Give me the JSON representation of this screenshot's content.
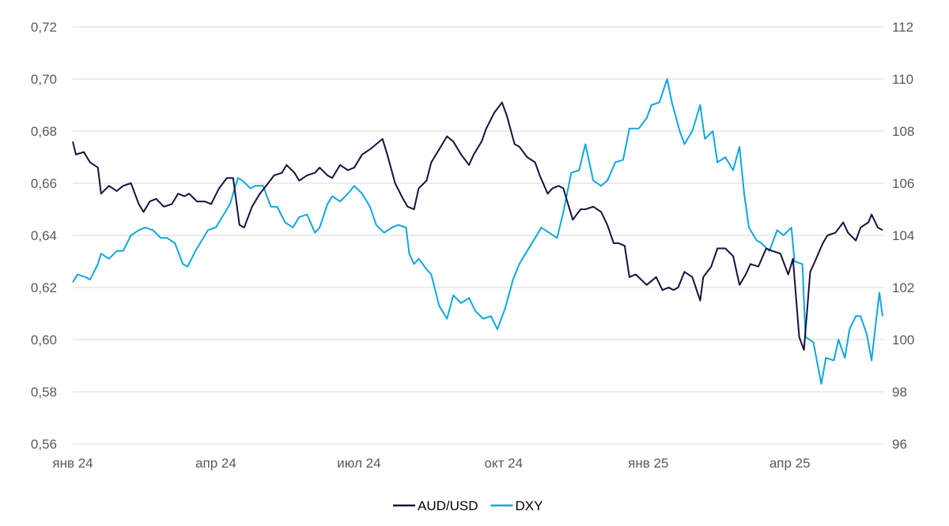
{
  "chart_data": {
    "type": "line",
    "title": "",
    "xlabel": "",
    "ylabel": "",
    "y_left_lim": [
      0.56,
      0.72
    ],
    "y_right_lim": [
      96,
      112
    ],
    "y_left_ticks": [
      "0,56",
      "0,58",
      "0,60",
      "0,62",
      "0,64",
      "0,66",
      "0,68",
      "0,70",
      "0,72"
    ],
    "y_right_ticks": [
      "96",
      "98",
      "100",
      "102",
      "104",
      "106",
      "108",
      "110",
      "112"
    ],
    "x_range": [
      "2024-01-01",
      "2025-05-31"
    ],
    "x_ticks": [
      {
        "date": "2024-01-01",
        "label": "янв 24"
      },
      {
        "date": "2024-04-01",
        "label": "апр 24"
      },
      {
        "date": "2024-07-01",
        "label": "июл 24"
      },
      {
        "date": "2024-10-01",
        "label": "окт 24"
      },
      {
        "date": "2025-01-01",
        "label": "янв 25"
      },
      {
        "date": "2025-04-01",
        "label": "апр 25"
      }
    ],
    "grid": true,
    "legend_position": "bottom-center",
    "series": [
      {
        "name": "AUD/USD",
        "axis": "left",
        "color": "#14123f",
        "points": [
          [
            "2024-01-01",
            0.676
          ],
          [
            "2024-01-03",
            0.671
          ],
          [
            "2024-01-08",
            0.672
          ],
          [
            "2024-01-12",
            0.668
          ],
          [
            "2024-01-17",
            0.666
          ],
          [
            "2024-01-19",
            0.656
          ],
          [
            "2024-01-24",
            0.659
          ],
          [
            "2024-01-29",
            0.657
          ],
          [
            "2024-02-02",
            0.659
          ],
          [
            "2024-02-07",
            0.66
          ],
          [
            "2024-02-12",
            0.652
          ],
          [
            "2024-02-15",
            0.649
          ],
          [
            "2024-02-19",
            0.653
          ],
          [
            "2024-02-23",
            0.654
          ],
          [
            "2024-02-28",
            0.651
          ],
          [
            "2024-03-04",
            0.652
          ],
          [
            "2024-03-08",
            0.656
          ],
          [
            "2024-03-12",
            0.655
          ],
          [
            "2024-03-15",
            0.656
          ],
          [
            "2024-03-20",
            0.653
          ],
          [
            "2024-03-25",
            0.653
          ],
          [
            "2024-03-29",
            0.652
          ],
          [
            "2024-04-03",
            0.658
          ],
          [
            "2024-04-08",
            0.662
          ],
          [
            "2024-04-12",
            0.662
          ],
          [
            "2024-04-16",
            0.644
          ],
          [
            "2024-04-19",
            0.643
          ],
          [
            "2024-04-24",
            0.651
          ],
          [
            "2024-04-29",
            0.656
          ],
          [
            "2024-05-03",
            0.659
          ],
          [
            "2024-05-08",
            0.663
          ],
          [
            "2024-05-13",
            0.664
          ],
          [
            "2024-05-16",
            0.667
          ],
          [
            "2024-05-21",
            0.664
          ],
          [
            "2024-05-24",
            0.661
          ],
          [
            "2024-05-29",
            0.663
          ],
          [
            "2024-06-03",
            0.664
          ],
          [
            "2024-06-06",
            0.666
          ],
          [
            "2024-06-11",
            0.663
          ],
          [
            "2024-06-14",
            0.662
          ],
          [
            "2024-06-19",
            0.667
          ],
          [
            "2024-06-24",
            0.665
          ],
          [
            "2024-06-28",
            0.666
          ],
          [
            "2024-07-03",
            0.671
          ],
          [
            "2024-07-08",
            0.673
          ],
          [
            "2024-07-12",
            0.675
          ],
          [
            "2024-07-16",
            0.677
          ],
          [
            "2024-07-19",
            0.671
          ],
          [
            "2024-07-24",
            0.66
          ],
          [
            "2024-07-29",
            0.654
          ],
          [
            "2024-08-01",
            0.651
          ],
          [
            "2024-08-05",
            0.65
          ],
          [
            "2024-08-08",
            0.658
          ],
          [
            "2024-08-13",
            0.661
          ],
          [
            "2024-08-16",
            0.668
          ],
          [
            "2024-08-21",
            0.673
          ],
          [
            "2024-08-26",
            0.678
          ],
          [
            "2024-08-30",
            0.676
          ],
          [
            "2024-09-04",
            0.671
          ],
          [
            "2024-09-09",
            0.667
          ],
          [
            "2024-09-12",
            0.671
          ],
          [
            "2024-09-17",
            0.676
          ],
          [
            "2024-09-20",
            0.681
          ],
          [
            "2024-09-25",
            0.687
          ],
          [
            "2024-09-30",
            0.691
          ],
          [
            "2024-10-03",
            0.686
          ],
          [
            "2024-10-08",
            0.675
          ],
          [
            "2024-10-11",
            0.674
          ],
          [
            "2024-10-16",
            0.67
          ],
          [
            "2024-10-21",
            0.668
          ],
          [
            "2024-10-24",
            0.663
          ],
          [
            "2024-10-29",
            0.656
          ],
          [
            "2024-11-01",
            0.658
          ],
          [
            "2024-11-05",
            0.659
          ],
          [
            "2024-11-08",
            0.658
          ],
          [
            "2024-11-11",
            0.652
          ],
          [
            "2024-11-14",
            0.646
          ],
          [
            "2024-11-19",
            0.65
          ],
          [
            "2024-11-22",
            0.65
          ],
          [
            "2024-11-27",
            0.651
          ],
          [
            "2024-12-02",
            0.649
          ],
          [
            "2024-12-06",
            0.644
          ],
          [
            "2024-12-10",
            0.637
          ],
          [
            "2024-12-13",
            0.637
          ],
          [
            "2024-12-17",
            0.636
          ],
          [
            "2024-12-20",
            0.624
          ],
          [
            "2024-12-24",
            0.625
          ],
          [
            "2024-12-31",
            0.621
          ],
          [
            "2025-01-06",
            0.624
          ],
          [
            "2025-01-10",
            0.619
          ],
          [
            "2025-01-14",
            0.62
          ],
          [
            "2025-01-17",
            0.619
          ],
          [
            "2025-01-20",
            0.62
          ],
          [
            "2025-01-24",
            0.626
          ],
          [
            "2025-01-29",
            0.624
          ],
          [
            "2025-02-03",
            0.615
          ],
          [
            "2025-02-05",
            0.624
          ],
          [
            "2025-02-10",
            0.628
          ],
          [
            "2025-02-14",
            0.635
          ],
          [
            "2025-02-19",
            0.635
          ],
          [
            "2025-02-24",
            0.632
          ],
          [
            "2025-02-28",
            0.621
          ],
          [
            "2025-03-04",
            0.625
          ],
          [
            "2025-03-07",
            0.629
          ],
          [
            "2025-03-12",
            0.628
          ],
          [
            "2025-03-17",
            0.635
          ],
          [
            "2025-03-21",
            0.634
          ],
          [
            "2025-03-26",
            0.633
          ],
          [
            "2025-03-31",
            0.625
          ],
          [
            "2025-04-03",
            0.631
          ],
          [
            "2025-04-07",
            0.601
          ],
          [
            "2025-04-10",
            0.596
          ],
          [
            "2025-04-14",
            0.626
          ],
          [
            "2025-04-17",
            0.63
          ],
          [
            "2025-04-22",
            0.637
          ],
          [
            "2025-04-25",
            0.64
          ],
          [
            "2025-04-30",
            0.641
          ],
          [
            "2025-05-05",
            0.645
          ],
          [
            "2025-05-08",
            0.641
          ],
          [
            "2025-05-13",
            0.638
          ],
          [
            "2025-05-16",
            0.643
          ],
          [
            "2025-05-21",
            0.645
          ],
          [
            "2025-05-23",
            0.648
          ],
          [
            "2025-05-27",
            0.643
          ],
          [
            "2025-05-30",
            0.642
          ]
        ]
      },
      {
        "name": "DXY",
        "axis": "right",
        "color": "#10a6de",
        "points": [
          [
            "2024-01-01",
            102.2
          ],
          [
            "2024-01-04",
            102.5
          ],
          [
            "2024-01-09",
            102.4
          ],
          [
            "2024-01-12",
            102.3
          ],
          [
            "2024-01-17",
            102.9
          ],
          [
            "2024-01-19",
            103.3
          ],
          [
            "2024-01-24",
            103.1
          ],
          [
            "2024-01-29",
            103.4
          ],
          [
            "2024-02-02",
            103.4
          ],
          [
            "2024-02-07",
            104.0
          ],
          [
            "2024-02-12",
            104.2
          ],
          [
            "2024-02-16",
            104.3
          ],
          [
            "2024-02-21",
            104.2
          ],
          [
            "2024-02-26",
            103.9
          ],
          [
            "2024-03-01",
            103.9
          ],
          [
            "2024-03-06",
            103.7
          ],
          [
            "2024-03-11",
            102.9
          ],
          [
            "2024-03-14",
            102.8
          ],
          [
            "2024-03-19",
            103.4
          ],
          [
            "2024-03-22",
            103.7
          ],
          [
            "2024-03-27",
            104.2
          ],
          [
            "2024-04-01",
            104.3
          ],
          [
            "2024-04-05",
            104.7
          ],
          [
            "2024-04-10",
            105.2
          ],
          [
            "2024-04-15",
            106.2
          ],
          [
            "2024-04-18",
            106.1
          ],
          [
            "2024-04-23",
            105.8
          ],
          [
            "2024-04-26",
            105.9
          ],
          [
            "2024-05-01",
            105.9
          ],
          [
            "2024-05-06",
            105.1
          ],
          [
            "2024-05-10",
            105.1
          ],
          [
            "2024-05-15",
            104.5
          ],
          [
            "2024-05-20",
            104.3
          ],
          [
            "2024-05-24",
            104.7
          ],
          [
            "2024-05-29",
            104.8
          ],
          [
            "2024-06-03",
            104.1
          ],
          [
            "2024-06-06",
            104.3
          ],
          [
            "2024-06-11",
            105.2
          ],
          [
            "2024-06-14",
            105.5
          ],
          [
            "2024-06-19",
            105.3
          ],
          [
            "2024-06-24",
            105.6
          ],
          [
            "2024-06-28",
            105.9
          ],
          [
            "2024-07-03",
            105.6
          ],
          [
            "2024-07-08",
            105.1
          ],
          [
            "2024-07-12",
            104.4
          ],
          [
            "2024-07-17",
            104.1
          ],
          [
            "2024-07-22",
            104.3
          ],
          [
            "2024-07-26",
            104.4
          ],
          [
            "2024-07-31",
            104.3
          ],
          [
            "2024-08-02",
            103.3
          ],
          [
            "2024-08-05",
            102.9
          ],
          [
            "2024-08-08",
            103.1
          ],
          [
            "2024-08-13",
            102.7
          ],
          [
            "2024-08-16",
            102.5
          ],
          [
            "2024-08-21",
            101.3
          ],
          [
            "2024-08-26",
            100.8
          ],
          [
            "2024-08-30",
            101.7
          ],
          [
            "2024-09-04",
            101.4
          ],
          [
            "2024-09-09",
            101.6
          ],
          [
            "2024-09-13",
            101.1
          ],
          [
            "2024-09-18",
            100.8
          ],
          [
            "2024-09-23",
            100.9
          ],
          [
            "2024-09-27",
            100.4
          ],
          [
            "2024-10-02",
            101.2
          ],
          [
            "2024-10-07",
            102.3
          ],
          [
            "2024-10-11",
            102.9
          ],
          [
            "2024-10-16",
            103.4
          ],
          [
            "2024-10-21",
            103.9
          ],
          [
            "2024-10-25",
            104.3
          ],
          [
            "2024-10-30",
            104.1
          ],
          [
            "2024-11-04",
            103.9
          ],
          [
            "2024-11-08",
            104.9
          ],
          [
            "2024-11-13",
            106.4
          ],
          [
            "2024-11-18",
            106.5
          ],
          [
            "2024-11-22",
            107.5
          ],
          [
            "2024-11-27",
            106.1
          ],
          [
            "2024-12-02",
            105.9
          ],
          [
            "2024-12-06",
            106.1
          ],
          [
            "2024-12-11",
            106.8
          ],
          [
            "2024-12-16",
            106.9
          ],
          [
            "2024-12-20",
            108.1
          ],
          [
            "2024-12-26",
            108.1
          ],
          [
            "2024-12-31",
            108.5
          ],
          [
            "2025-01-03",
            109.0
          ],
          [
            "2025-01-08",
            109.1
          ],
          [
            "2025-01-13",
            110.0
          ],
          [
            "2025-01-16",
            109.1
          ],
          [
            "2025-01-21",
            108.0
          ],
          [
            "2025-01-24",
            107.5
          ],
          [
            "2025-01-29",
            108.0
          ],
          [
            "2025-02-03",
            109.0
          ],
          [
            "2025-02-06",
            107.7
          ],
          [
            "2025-02-11",
            108.0
          ],
          [
            "2025-02-14",
            106.8
          ],
          [
            "2025-02-19",
            107.0
          ],
          [
            "2025-02-24",
            106.5
          ],
          [
            "2025-02-28",
            107.4
          ],
          [
            "2025-03-03",
            105.6
          ],
          [
            "2025-03-06",
            104.3
          ],
          [
            "2025-03-11",
            103.8
          ],
          [
            "2025-03-14",
            103.7
          ],
          [
            "2025-03-19",
            103.4
          ],
          [
            "2025-03-24",
            104.2
          ],
          [
            "2025-03-28",
            104.0
          ],
          [
            "2025-04-02",
            104.3
          ],
          [
            "2025-04-04",
            103.0
          ],
          [
            "2025-04-09",
            102.9
          ],
          [
            "2025-04-11",
            100.1
          ],
          [
            "2025-04-16",
            99.9
          ],
          [
            "2025-04-21",
            98.3
          ],
          [
            "2025-04-24",
            99.3
          ],
          [
            "2025-04-29",
            99.2
          ],
          [
            "2025-05-02",
            100.0
          ],
          [
            "2025-05-06",
            99.3
          ],
          [
            "2025-05-09",
            100.4
          ],
          [
            "2025-05-13",
            100.9
          ],
          [
            "2025-05-16",
            100.9
          ],
          [
            "2025-05-20",
            100.2
          ],
          [
            "2025-05-23",
            99.2
          ],
          [
            "2025-05-26",
            100.8
          ],
          [
            "2025-05-28",
            101.8
          ],
          [
            "2025-05-30",
            100.9
          ]
        ]
      }
    ]
  }
}
